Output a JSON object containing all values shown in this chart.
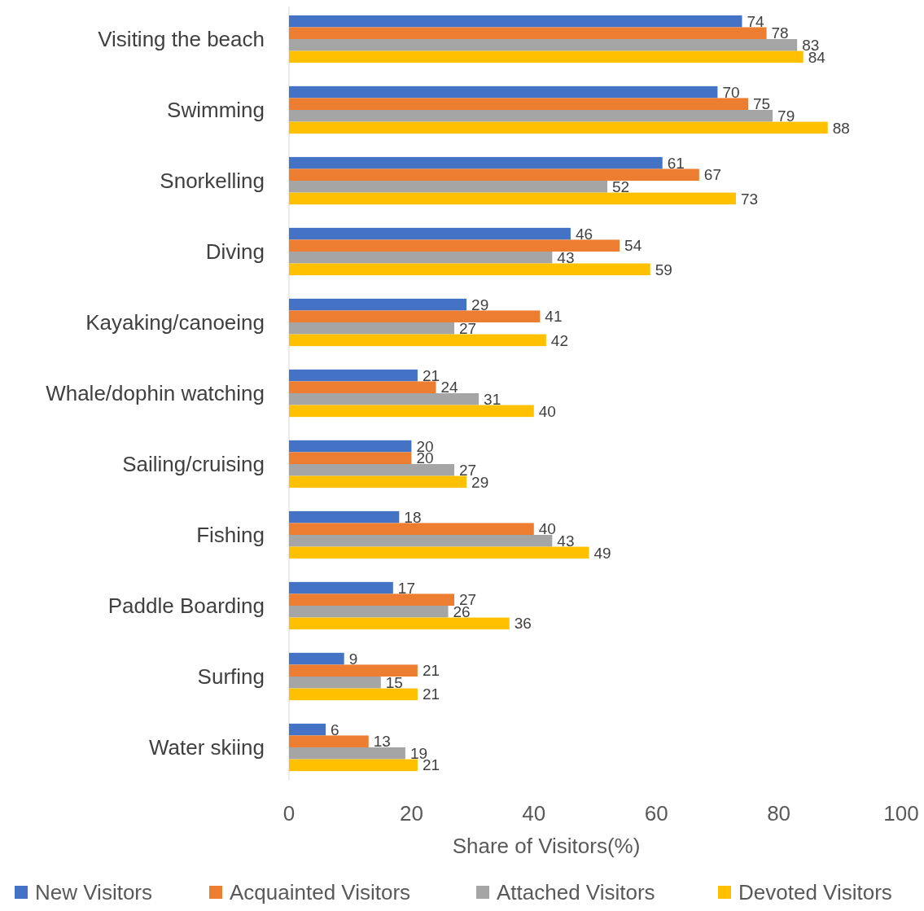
{
  "chart_data": {
    "type": "bar",
    "orientation": "horizontal",
    "xlabel": "Share of Visitors(%)",
    "categories": [
      "Visiting the beach",
      "Swimming",
      "Snorkelling",
      "Diving",
      "Kayaking/canoeing",
      "Whale/dophin watching",
      "Sailing/cruising",
      "Fishing",
      "Paddle Boarding",
      "Surfing",
      "Water skiing"
    ],
    "series": [
      {
        "name": "New Visitors",
        "color": "#4472c4",
        "values": [
          74,
          70,
          61,
          46,
          29,
          21,
          20,
          18,
          17,
          9,
          6
        ]
      },
      {
        "name": "Acquainted Visitors",
        "color": "#ed7d31",
        "values": [
          78,
          75,
          67,
          54,
          41,
          24,
          20,
          40,
          27,
          21,
          13
        ]
      },
      {
        "name": "Attached Visitors",
        "color": "#a5a5a5",
        "values": [
          83,
          79,
          52,
          43,
          27,
          31,
          27,
          43,
          26,
          15,
          19
        ]
      },
      {
        "name": "Devoted Visitors",
        "color": "#ffc000",
        "values": [
          84,
          88,
          73,
          59,
          42,
          40,
          29,
          49,
          36,
          21,
          21
        ]
      }
    ],
    "xlim": [
      0,
      100
    ],
    "xticks": [
      0,
      20,
      40,
      60,
      80,
      100
    ],
    "grid": false,
    "legend": "bottom",
    "data_labels": true
  }
}
